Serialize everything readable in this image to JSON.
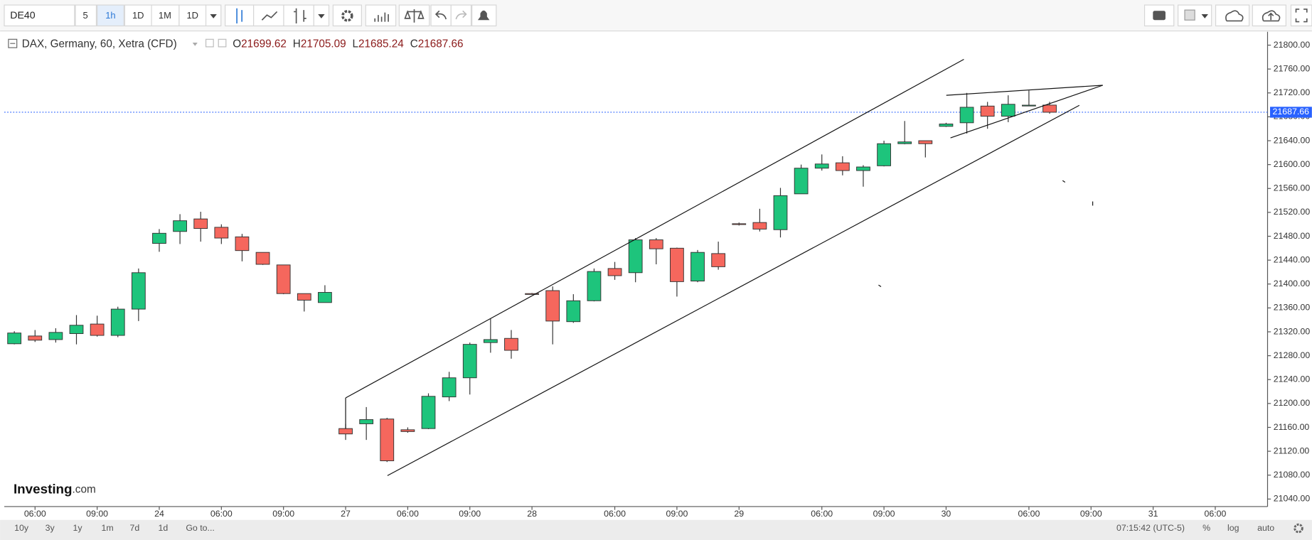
{
  "toolbar": {
    "symbol": "DE40",
    "intervals": [
      "5",
      "1h",
      "1D",
      "1M",
      "1D"
    ]
  },
  "legend": {
    "title": "DAX, Germany, 60, Xetra (CFD)",
    "ohlc": [
      {
        "key": "O",
        "text": "21699.62"
      },
      {
        "key": "H",
        "text": "21705.09"
      },
      {
        "key": "L",
        "text": "21685.24"
      },
      {
        "key": "C",
        "text": "21687.66"
      }
    ]
  },
  "logo": {
    "brand": "Investing",
    "suffix": ".com"
  },
  "footer": {
    "ranges": [
      "10y",
      "3y",
      "1y",
      "1m",
      "7d",
      "1d"
    ],
    "goto": "Go to...",
    "clock": "07:15:42 (UTC-5)",
    "options": [
      "%",
      "log",
      "auto"
    ]
  },
  "chart_data": {
    "type": "candlestick",
    "categories": [
      null,
      "06:00",
      null,
      null,
      "09:00",
      null,
      null,
      "24",
      null,
      null,
      "06:00",
      null,
      null,
      "09:00",
      null,
      null,
      "27",
      null,
      null,
      "06:00",
      null,
      null,
      "09:00",
      null,
      null,
      "28",
      null,
      null,
      null,
      "06:00",
      null,
      null,
      "09:00",
      null,
      null,
      "29",
      null,
      null,
      null,
      "06:00",
      null,
      null,
      "09:00",
      null,
      null,
      "30",
      null,
      null,
      null,
      "06:00",
      null,
      null,
      "09:00",
      null,
      null,
      "31",
      null,
      null,
      "06:00"
    ],
    "open": [
      21300,
      21313,
      21307,
      21317,
      21333,
      21314,
      21358,
      21468,
      21488,
      21509,
      21495,
      21479,
      21453,
      21432,
      21384,
      21369,
      21158,
      21166,
      21174,
      21156,
      21158,
      21211,
      21243,
      21302,
      21309,
      21384,
      21389,
      21337,
      21372,
      21426,
      21419,
      21474,
      21460,
      21405,
      21451,
      21501,
      21503,
      21491,
      21551,
      21594,
      21603,
      21590,
      21598,
      21635,
      21640,
      21664,
      21670,
      21698,
      21681,
      21699,
      21699.62,
      null,
      null,
      null,
      null,
      null,
      null,
      null,
      null
    ],
    "high": [
      21321,
      21323,
      21326,
      21348,
      21347,
      21362,
      21426,
      21492,
      21517,
      21521,
      21500,
      21484,
      21453,
      21432,
      21384,
      21398,
      21166,
      21194,
      21176,
      21160,
      21217,
      21253,
      21302,
      21342,
      21323,
      21385,
      21396,
      21383,
      21426,
      21437,
      21477,
      21477,
      21461,
      21457,
      21471,
      21503,
      21526,
      21561,
      21600,
      21617,
      21614,
      21599,
      21640,
      21673,
      21640,
      21670,
      21720,
      21705,
      21716,
      21724,
      21705.09,
      null,
      null,
      null,
      null,
      null,
      null,
      null,
      null
    ],
    "low": [
      21299,
      21303,
      21302,
      21299,
      21312,
      21311,
      21338,
      21454,
      21467,
      21471,
      21467,
      21438,
      21432,
      21383,
      21354,
      21369,
      21139,
      21139,
      21102,
      21151,
      21157,
      21204,
      21215,
      21285,
      21275,
      21382,
      21299,
      21335,
      21371,
      21407,
      21403,
      21433,
      21379,
      21403,
      21424,
      21498,
      21488,
      21478,
      21551,
      21590,
      21582,
      21563,
      21597,
      21634,
      21612,
      21663,
      21652,
      21660,
      21671,
      21698,
      21685.24,
      null,
      null,
      null,
      null,
      null,
      null,
      null,
      null
    ],
    "close": [
      21318,
      21306,
      21319,
      21331,
      21314,
      21358,
      21419,
      21485,
      21506,
      21493,
      21477,
      21456,
      21433,
      21384,
      21373,
      21386,
      21149,
      21173,
      21104,
      21153,
      21212,
      21243,
      21299,
      21307,
      21289,
      21383,
      21338,
      21372,
      21421,
      21414,
      21474,
      21459,
      21404,
      21453,
      21429,
      21500,
      21492,
      21548,
      21594,
      21601,
      21590,
      21596,
      21635,
      21638,
      21635,
      21668,
      21696,
      21681,
      21701,
      21699.5,
      21687.66,
      null,
      null,
      null,
      null,
      null,
      null,
      null,
      null
    ],
    "up_color": "#1ec47c",
    "down_color": "#f5675d",
    "last_price": 21687.66,
    "last_price_color": "#2962ff",
    "ylim": [
      21027.4,
      21822.4
    ],
    "yticks": [
      {
        "value": 21040,
        "label": "21040.00"
      },
      {
        "value": 21080,
        "label": "21080.00"
      },
      {
        "value": 21120,
        "label": "21120.00"
      },
      {
        "value": 21160,
        "label": "21160.00"
      },
      {
        "value": 21200,
        "label": "21200.00"
      },
      {
        "value": 21240,
        "label": "21240.00"
      },
      {
        "value": 21280,
        "label": "21280.00"
      },
      {
        "value": 21320,
        "label": "21320.00"
      },
      {
        "value": 21360,
        "label": "21360.00"
      },
      {
        "value": 21400,
        "label": "21400.00"
      },
      {
        "value": 21440,
        "label": "21440.00"
      },
      {
        "value": 21480,
        "label": "21480.00"
      },
      {
        "value": 21520,
        "label": "21520.00"
      },
      {
        "value": 21560,
        "label": "21560.00"
      },
      {
        "value": 21600,
        "label": "21600.00"
      },
      {
        "value": 21640,
        "label": "21640.00"
      },
      {
        "value": 21680,
        "label": "21680.00"
      },
      {
        "value": 21720,
        "label": "21720.00"
      },
      {
        "value": 21760,
        "label": "21760.00"
      },
      {
        "value": 21800,
        "label": "21800.00"
      }
    ],
    "grid": false
  }
}
